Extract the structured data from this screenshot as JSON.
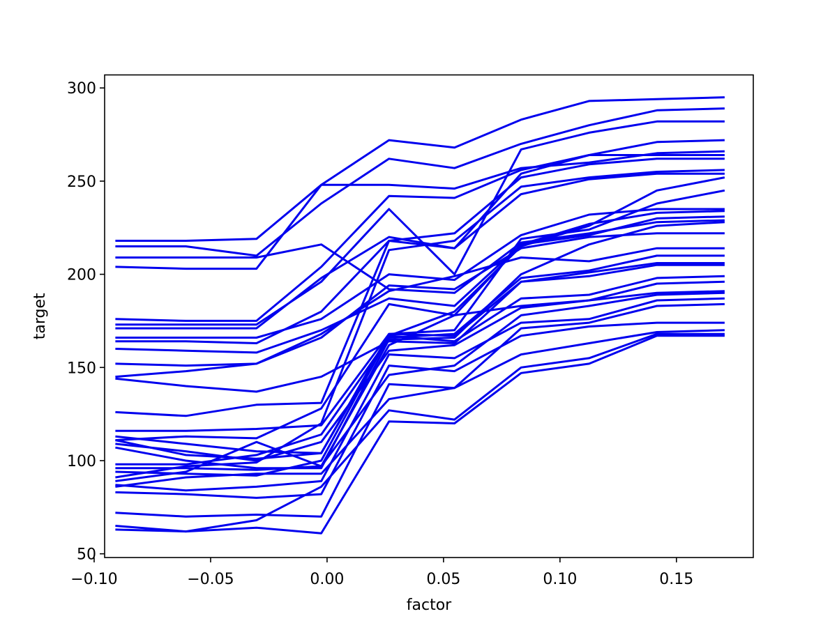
{
  "chart_data": {
    "type": "line",
    "title": "",
    "xlabel": "factor",
    "ylabel": "target",
    "xlim": [
      -0.0955,
      0.183
    ],
    "ylim": [
      48,
      307
    ],
    "grid": false,
    "legend": "none",
    "line_color": "#0000ee",
    "x_ticks": [
      -0.1,
      -0.05,
      0.0,
      0.05,
      0.1,
      0.15
    ],
    "x_tick_labels": [
      "−0.10",
      "−0.05",
      "0.00",
      "0.05",
      "0.10",
      "0.15"
    ],
    "y_ticks": [
      50,
      100,
      150,
      200,
      250,
      300
    ],
    "y_tick_labels": [
      "50",
      "100",
      "150",
      "200",
      "250",
      "300"
    ],
    "x": [
      -0.0909,
      -0.0606,
      -0.0303,
      -0.0025,
      0.0266,
      0.0547,
      0.0833,
      0.1125,
      0.1416,
      0.1707
    ],
    "series": [
      {
        "values": [
          218,
          218,
          219,
          248,
          248,
          246,
          257,
          260,
          265,
          266
        ]
      },
      {
        "values": [
          215,
          215,
          210,
          238,
          262,
          257,
          270,
          280,
          288,
          289
        ]
      },
      {
        "values": [
          209,
          209,
          209,
          216,
          192,
          190,
          217,
          222,
          228,
          229
        ]
      },
      {
        "values": [
          204,
          203,
          203,
          248,
          272,
          268,
          283,
          293,
          294,
          295
        ]
      },
      {
        "values": [
          176,
          175,
          175,
          204,
          242,
          241,
          256,
          264,
          264,
          264
        ]
      },
      {
        "values": [
          173,
          173,
          173,
          196,
          235,
          200,
          267,
          276,
          282,
          282
        ]
      },
      {
        "values": [
          171,
          171,
          171,
          198,
          220,
          214,
          254,
          264,
          271,
          272
        ]
      },
      {
        "values": [
          166,
          166,
          166,
          176,
          200,
          197,
          221,
          232,
          235,
          235
        ]
      },
      {
        "values": [
          164,
          164,
          163,
          180,
          218,
          214,
          243,
          251,
          254,
          254
        ]
      },
      {
        "values": [
          160,
          159,
          158,
          170,
          187,
          183,
          216,
          227,
          233,
          234
        ]
      },
      {
        "values": [
          152,
          151,
          152,
          166,
          194,
          192,
          214,
          220,
          222,
          222
        ]
      },
      {
        "values": [
          145,
          148,
          152,
          168,
          191,
          199,
          209,
          207,
          214,
          214
        ]
      },
      {
        "values": [
          144,
          140,
          137,
          145,
          164,
          163,
          196,
          201,
          206,
          206
        ]
      },
      {
        "values": [
          126,
          124,
          130,
          131,
          218,
          222,
          252,
          259,
          262,
          262
        ]
      },
      {
        "values": [
          116,
          116,
          117,
          119,
          168,
          167,
          196,
          199,
          205,
          205
        ]
      },
      {
        "values": [
          113,
          109,
          105,
          104,
          167,
          164,
          187,
          189,
          198,
          199
        ]
      },
      {
        "values": [
          111,
          113,
          112,
          128,
          184,
          178,
          216,
          221,
          230,
          231
        ]
      },
      {
        "values": [
          111,
          103,
          101,
          104,
          168,
          170,
          219,
          224,
          238,
          245
        ]
      },
      {
        "values": [
          109,
          105,
          100,
          110,
          159,
          162,
          182,
          186,
          190,
          191
        ]
      },
      {
        "values": [
          107,
          100,
          96,
          96,
          165,
          166,
          200,
          216,
          226,
          228
        ]
      },
      {
        "values": [
          98,
          98,
          103,
          114,
          166,
          168,
          198,
          202,
          210,
          210
        ]
      },
      {
        "values": [
          96,
          96,
          95,
          97,
          162,
          178,
          183,
          186,
          195,
          196
        ]
      },
      {
        "values": [
          94,
          93,
          92,
          100,
          167,
          180,
          215,
          226,
          245,
          252
        ]
      },
      {
        "values": [
          91,
          97,
          99,
          120,
          213,
          218,
          247,
          252,
          255,
          256
        ]
      },
      {
        "values": [
          89,
          94,
          110,
          97,
          146,
          151,
          178,
          183,
          189,
          190
        ]
      },
      {
        "values": [
          87,
          84,
          86,
          89,
          157,
          155,
          174,
          176,
          186,
          187
        ]
      },
      {
        "values": [
          86,
          91,
          93,
          93,
          133,
          139,
          171,
          174,
          183,
          184
        ]
      },
      {
        "values": [
          83,
          82,
          80,
          82,
          151,
          148,
          167,
          172,
          174,
          174
        ]
      },
      {
        "values": [
          72,
          70,
          71,
          70,
          141,
          139,
          157,
          163,
          169,
          170
        ]
      },
      {
        "values": [
          65,
          62,
          68,
          86,
          127,
          122,
          150,
          155,
          168,
          168
        ]
      },
      {
        "values": [
          63,
          62,
          64,
          61,
          121,
          120,
          147,
          152,
          167,
          167
        ]
      }
    ]
  }
}
